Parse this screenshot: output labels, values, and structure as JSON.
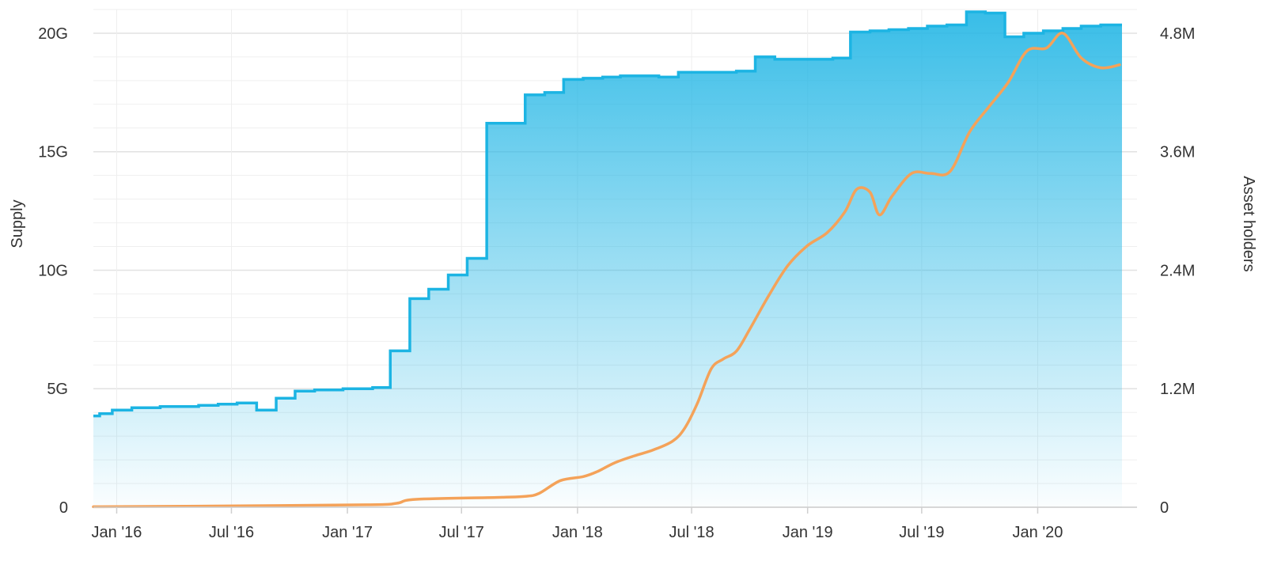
{
  "chart_data": {
    "type": "area",
    "title": "",
    "x_ticks": [
      "Jan '16",
      "Jul '16",
      "Jan '17",
      "Jul '17",
      "Jan '18",
      "Jul '18",
      "Jan '19",
      "Jul '19",
      "Jan '20"
    ],
    "y_left": {
      "label": "Supply",
      "ticks": [
        "0",
        "5G",
        "10G",
        "15G",
        "20G"
      ],
      "range": [
        0,
        21000000000
      ]
    },
    "y_right": {
      "label": "Asset holders",
      "ticks": [
        "0",
        "1.2M",
        "2.4M",
        "3.6M",
        "4.8M"
      ],
      "range": [
        0,
        5040000
      ]
    },
    "grid": true,
    "series": [
      {
        "name": "Supply",
        "kind": "step-area",
        "axis": "left",
        "color": "#1cb4e3",
        "points": [
          [
            "2015-11-25",
            3850000000.0
          ],
          [
            "2015-12-05",
            3950000000.0
          ],
          [
            "2015-12-25",
            4100000000.0
          ],
          [
            "2016-01-25",
            4200000000.0
          ],
          [
            "2016-03-10",
            4250000000.0
          ],
          [
            "2016-05-10",
            4300000000.0
          ],
          [
            "2016-06-10",
            4350000000.0
          ],
          [
            "2016-07-10",
            4400000000.0
          ],
          [
            "2016-08-10",
            4100000000.0
          ],
          [
            "2016-09-10",
            4600000000.0
          ],
          [
            "2016-10-10",
            4900000000.0
          ],
          [
            "2016-11-10",
            4950000000.0
          ],
          [
            "2016-12-25",
            5000000000.0
          ],
          [
            "2017-02-10",
            5050000000.0
          ],
          [
            "2017-03-10",
            6600000000.0
          ],
          [
            "2017-04-10",
            8800000000.0
          ],
          [
            "2017-05-10",
            9200000000.0
          ],
          [
            "2017-06-10",
            9800000000.0
          ],
          [
            "2017-07-10",
            10500000000.0
          ],
          [
            "2017-08-10",
            16200000000.0
          ],
          [
            "2017-10-10",
            17400000000.0
          ],
          [
            "2017-11-10",
            17500000000.0
          ],
          [
            "2017-12-10",
            18050000000.0
          ],
          [
            "2018-01-10",
            18100000000.0
          ],
          [
            "2018-02-10",
            18150000000.0
          ],
          [
            "2018-03-10",
            18200000000.0
          ],
          [
            "2018-05-10",
            18150000000.0
          ],
          [
            "2018-06-10",
            18350000000.0
          ],
          [
            "2018-09-10",
            18400000000.0
          ],
          [
            "2018-10-10",
            19000000000.0
          ],
          [
            "2018-11-10",
            18900000000.0
          ],
          [
            "2019-02-10",
            18950000000.0
          ],
          [
            "2019-03-10",
            20050000000.0
          ],
          [
            "2019-04-10",
            20100000000.0
          ],
          [
            "2019-05-10",
            20150000000.0
          ],
          [
            "2019-06-10",
            20200000000.0
          ],
          [
            "2019-07-10",
            20300000000.0
          ],
          [
            "2019-08-10",
            20350000000.0
          ],
          [
            "2019-09-10",
            20900000000.0
          ],
          [
            "2019-10-10",
            20850000000.0
          ],
          [
            "2019-11-10",
            19850000000.0
          ],
          [
            "2019-12-10",
            20000000000.0
          ],
          [
            "2020-01-10",
            20100000000.0
          ],
          [
            "2020-02-10",
            20200000000.0
          ],
          [
            "2020-03-10",
            20300000000.0
          ],
          [
            "2020-04-10",
            20350000000.0
          ],
          [
            "2020-05-10",
            20350000000.0
          ]
        ]
      },
      {
        "name": "Asset holders",
        "kind": "line",
        "axis": "right",
        "color": "#f4a259",
        "points": [
          [
            "2015-11-25",
            5000
          ],
          [
            "2016-06-01",
            12000
          ],
          [
            "2017-02-01",
            25000
          ],
          [
            "2017-03-20",
            40000
          ],
          [
            "2017-04-20",
            80000
          ],
          [
            "2017-09-01",
            100000
          ],
          [
            "2017-10-10",
            110000
          ],
          [
            "2017-11-01",
            140000
          ],
          [
            "2017-12-05",
            270000
          ],
          [
            "2018-01-10",
            310000
          ],
          [
            "2018-02-01",
            360000
          ],
          [
            "2018-03-01",
            450000
          ],
          [
            "2018-04-01",
            520000
          ],
          [
            "2018-05-01",
            580000
          ],
          [
            "2018-06-01",
            670000
          ],
          [
            "2018-06-20",
            800000
          ],
          [
            "2018-07-10",
            1050000
          ],
          [
            "2018-08-01",
            1400000
          ],
          [
            "2018-08-20",
            1500000
          ],
          [
            "2018-09-10",
            1580000
          ],
          [
            "2018-10-01",
            1800000
          ],
          [
            "2018-11-01",
            2150000
          ],
          [
            "2018-12-01",
            2450000
          ],
          [
            "2019-01-01",
            2650000
          ],
          [
            "2019-02-01",
            2780000
          ],
          [
            "2019-03-01",
            2990000
          ],
          [
            "2019-03-20",
            3220000
          ],
          [
            "2019-04-10",
            3190000
          ],
          [
            "2019-04-25",
            2960000
          ],
          [
            "2019-05-15",
            3150000
          ],
          [
            "2019-06-15",
            3380000
          ],
          [
            "2019-07-15",
            3380000
          ],
          [
            "2019-08-15",
            3400000
          ],
          [
            "2019-09-15",
            3800000
          ],
          [
            "2019-10-15",
            4050000
          ],
          [
            "2019-11-15",
            4300000
          ],
          [
            "2019-12-15",
            4620000
          ],
          [
            "2020-01-15",
            4650000
          ],
          [
            "2020-02-10",
            4800000
          ],
          [
            "2020-03-10",
            4550000
          ],
          [
            "2020-04-10",
            4450000
          ],
          [
            "2020-05-10",
            4480000
          ]
        ]
      }
    ]
  }
}
